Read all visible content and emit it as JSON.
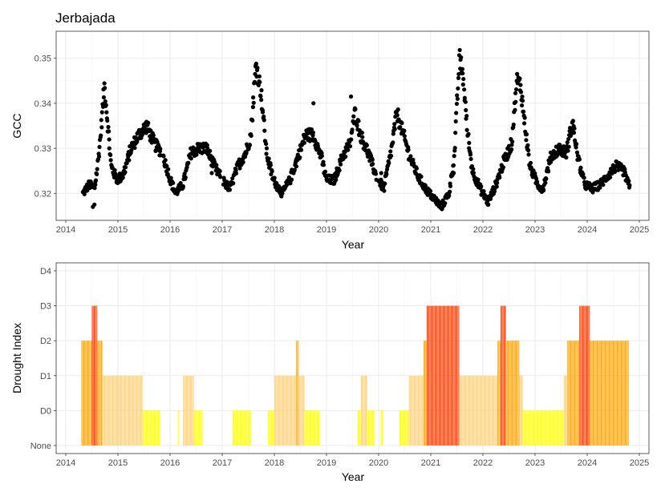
{
  "title": "Jerbajada",
  "chart_data": [
    {
      "type": "scatter",
      "title": "Jerbajada",
      "xlabel": "Year",
      "ylabel": "GCC",
      "xlim": [
        2014,
        2025
      ],
      "ylim": [
        0.314,
        0.356
      ],
      "x_ticks": [
        "2014",
        "2015",
        "2016",
        "2017",
        "2018",
        "2019",
        "2020",
        "2021",
        "2022",
        "2023",
        "2024",
        "2025"
      ],
      "y_ticks": [
        "0.32",
        "0.33",
        "0.34",
        "0.35"
      ],
      "grid": true,
      "point_color": "#000000",
      "seasonal_profile": [
        [
          2014.33,
          0.32
        ],
        [
          2014.45,
          0.322
        ],
        [
          2014.55,
          0.321
        ],
        [
          2014.6,
          0.325
        ],
        [
          2014.66,
          0.332
        ],
        [
          2014.74,
          0.344
        ],
        [
          2014.8,
          0.336
        ],
        [
          2014.87,
          0.326
        ],
        [
          2014.98,
          0.323
        ],
        [
          2015.1,
          0.324
        ],
        [
          2015.25,
          0.33
        ],
        [
          2015.4,
          0.333
        ],
        [
          2015.55,
          0.335
        ],
        [
          2015.7,
          0.331
        ],
        [
          2015.85,
          0.329
        ],
        [
          2015.98,
          0.324
        ],
        [
          2016.1,
          0.32
        ],
        [
          2016.25,
          0.322
        ],
        [
          2016.4,
          0.329
        ],
        [
          2016.55,
          0.33
        ],
        [
          2016.7,
          0.33
        ],
        [
          2016.85,
          0.326
        ],
        [
          2017.0,
          0.323
        ],
        [
          2017.15,
          0.321
        ],
        [
          2017.3,
          0.326
        ],
        [
          2017.45,
          0.329
        ],
        [
          2017.55,
          0.333
        ],
        [
          2017.65,
          0.349
        ],
        [
          2017.75,
          0.342
        ],
        [
          2017.85,
          0.329
        ],
        [
          2017.98,
          0.323
        ],
        [
          2018.15,
          0.32
        ],
        [
          2018.3,
          0.323
        ],
        [
          2018.45,
          0.328
        ],
        [
          2018.6,
          0.333
        ],
        [
          2018.75,
          0.333
        ],
        [
          2018.9,
          0.328
        ],
        [
          2019.0,
          0.323
        ],
        [
          2019.15,
          0.323
        ],
        [
          2019.3,
          0.328
        ],
        [
          2019.45,
          0.331
        ],
        [
          2019.55,
          0.338
        ],
        [
          2019.65,
          0.333
        ],
        [
          2019.8,
          0.329
        ],
        [
          2019.95,
          0.324
        ],
        [
          2020.1,
          0.321
        ],
        [
          2020.25,
          0.33
        ],
        [
          2020.35,
          0.338
        ],
        [
          2020.45,
          0.334
        ],
        [
          2020.6,
          0.328
        ],
        [
          2020.75,
          0.324
        ],
        [
          2020.9,
          0.321
        ],
        [
          2021.05,
          0.319
        ],
        [
          2021.2,
          0.317
        ],
        [
          2021.35,
          0.32
        ],
        [
          2021.45,
          0.328
        ],
        [
          2021.55,
          0.35
        ],
        [
          2021.62,
          0.346
        ],
        [
          2021.7,
          0.334
        ],
        [
          2021.8,
          0.325
        ],
        [
          2021.95,
          0.321
        ],
        [
          2022.1,
          0.318
        ],
        [
          2022.25,
          0.322
        ],
        [
          2022.4,
          0.327
        ],
        [
          2022.55,
          0.331
        ],
        [
          2022.65,
          0.345
        ],
        [
          2022.72,
          0.344
        ],
        [
          2022.8,
          0.336
        ],
        [
          2022.9,
          0.326
        ],
        [
          2023.05,
          0.322
        ],
        [
          2023.15,
          0.321
        ],
        [
          2023.3,
          0.328
        ],
        [
          2023.45,
          0.33
        ],
        [
          2023.6,
          0.329
        ],
        [
          2023.72,
          0.336
        ],
        [
          2023.82,
          0.328
        ],
        [
          2023.95,
          0.322
        ],
        [
          2024.1,
          0.321
        ],
        [
          2024.25,
          0.322
        ],
        [
          2024.4,
          0.324
        ],
        [
          2024.55,
          0.326
        ],
        [
          2024.7,
          0.325
        ],
        [
          2024.82,
          0.321
        ]
      ],
      "spikes": [
        [
          2014.52,
          0.317
        ],
        [
          2014.55,
          0.3175
        ],
        [
          2015.02,
          0.3225
        ],
        [
          2016.8,
          0.3245
        ],
        [
          2018.75,
          0.34
        ],
        [
          2019.47,
          0.3415
        ],
        [
          2020.05,
          0.3245
        ],
        [
          2021.44,
          0.3245
        ]
      ]
    },
    {
      "type": "bar",
      "xlabel": "Year",
      "ylabel": "Drought Index",
      "xlim": [
        2014,
        2025
      ],
      "levels": [
        "None",
        "D0",
        "D1",
        "D2",
        "D3",
        "D4"
      ],
      "x_ticks": [
        "2014",
        "2015",
        "2016",
        "2017",
        "2018",
        "2019",
        "2020",
        "2021",
        "2022",
        "2023",
        "2024",
        "2025"
      ],
      "grid": true,
      "level_colors": {
        "D0": "#ffff00",
        "D1": "#fdd17a",
        "D2": "#ffa500",
        "D3": "#ff3c00",
        "D4": "#cc0000"
      },
      "weeks": [
        [
          2014.3,
          2014.5,
          2
        ],
        [
          2014.5,
          2014.6,
          3
        ],
        [
          2014.6,
          2014.7,
          2
        ],
        [
          2014.7,
          2015.48,
          1
        ],
        [
          2015.48,
          2015.82,
          0
        ],
        [
          2016.15,
          2016.18,
          0
        ],
        [
          2016.25,
          2016.46,
          1
        ],
        [
          2016.46,
          2016.63,
          0
        ],
        [
          2017.2,
          2017.55,
          0
        ],
        [
          2017.88,
          2018.0,
          0
        ],
        [
          2018.0,
          2018.42,
          1
        ],
        [
          2018.42,
          2018.46,
          2
        ],
        [
          2018.46,
          2018.58,
          1
        ],
        [
          2018.58,
          2018.88,
          0
        ],
        [
          2019.6,
          2019.66,
          0
        ],
        [
          2019.66,
          2019.78,
          1
        ],
        [
          2019.78,
          2019.92,
          0
        ],
        [
          2020.04,
          2020.08,
          0
        ],
        [
          2020.4,
          2020.58,
          0
        ],
        [
          2020.58,
          2020.86,
          1
        ],
        [
          2020.86,
          2020.92,
          2
        ],
        [
          2020.92,
          2021.55,
          3
        ],
        [
          2021.55,
          2022.28,
          1
        ],
        [
          2022.28,
          2022.34,
          2
        ],
        [
          2022.34,
          2022.44,
          3
        ],
        [
          2022.44,
          2022.7,
          2
        ],
        [
          2022.7,
          2022.76,
          1
        ],
        [
          2022.76,
          2023.55,
          0
        ],
        [
          2023.55,
          2023.62,
          1
        ],
        [
          2023.62,
          2023.85,
          2
        ],
        [
          2023.85,
          2024.05,
          3
        ],
        [
          2024.05,
          2024.8,
          2
        ]
      ]
    }
  ]
}
